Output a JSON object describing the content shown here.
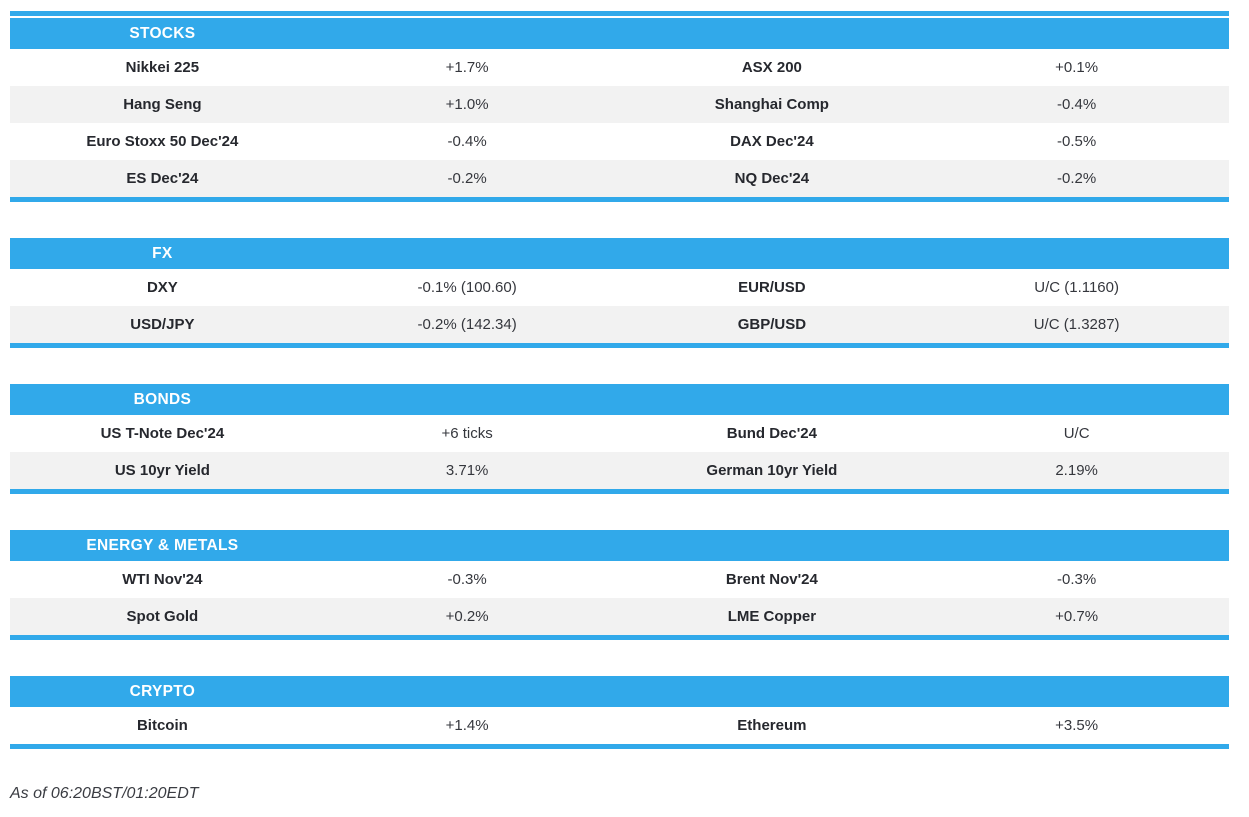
{
  "colors": {
    "accent": "#31a9ea",
    "alt_row": "#f2f2f2",
    "header_text": "#ffffff",
    "label_text": "#26282e",
    "value_text": "#35373d"
  },
  "sections": [
    {
      "title": "STOCKS",
      "rows": [
        {
          "left": {
            "label": "Nikkei 225",
            "value": "+1.7%"
          },
          "right": {
            "label": "ASX 200",
            "value": "+0.1%"
          }
        },
        {
          "left": {
            "label": "Hang Seng",
            "value": "+1.0%"
          },
          "right": {
            "label": "Shanghai Comp",
            "value": "-0.4%"
          }
        },
        {
          "left": {
            "label": "Euro Stoxx 50 Dec'24",
            "value": "-0.4%"
          },
          "right": {
            "label": "DAX Dec'24",
            "value": "-0.5%"
          }
        },
        {
          "left": {
            "label": "ES Dec'24",
            "value": "-0.2%"
          },
          "right": {
            "label": "NQ Dec'24",
            "value": "-0.2%"
          }
        }
      ]
    },
    {
      "title": "FX",
      "rows": [
        {
          "left": {
            "label": "DXY",
            "value": "-0.1% (100.60)"
          },
          "right": {
            "label": "EUR/USD",
            "value": "U/C (1.1160)"
          }
        },
        {
          "left": {
            "label": "USD/JPY",
            "value": "-0.2% (142.34)"
          },
          "right": {
            "label": "GBP/USD",
            "value": "U/C (1.3287)"
          }
        }
      ]
    },
    {
      "title": "BONDS",
      "rows": [
        {
          "left": {
            "label": "US T-Note Dec'24",
            "value": "+6 ticks"
          },
          "right": {
            "label": "Bund Dec'24",
            "value": "U/C"
          }
        },
        {
          "left": {
            "label": "US 10yr Yield",
            "value": "3.71%"
          },
          "right": {
            "label": "German 10yr Yield",
            "value": "2.19%"
          }
        }
      ]
    },
    {
      "title": "ENERGY & METALS",
      "rows": [
        {
          "left": {
            "label": "WTI Nov'24",
            "value": "-0.3%"
          },
          "right": {
            "label": "Brent Nov'24",
            "value": "-0.3%"
          }
        },
        {
          "left": {
            "label": "Spot Gold",
            "value": "+0.2%"
          },
          "right": {
            "label": "LME Copper",
            "value": "+0.7%"
          }
        }
      ]
    },
    {
      "title": "CRYPTO",
      "rows": [
        {
          "left": {
            "label": "Bitcoin",
            "value": "+1.4%"
          },
          "right": {
            "label": "Ethereum",
            "value": "+3.5%"
          }
        }
      ]
    }
  ],
  "footer": {
    "as_of": "As of 06:20BST/01:20EDT"
  }
}
